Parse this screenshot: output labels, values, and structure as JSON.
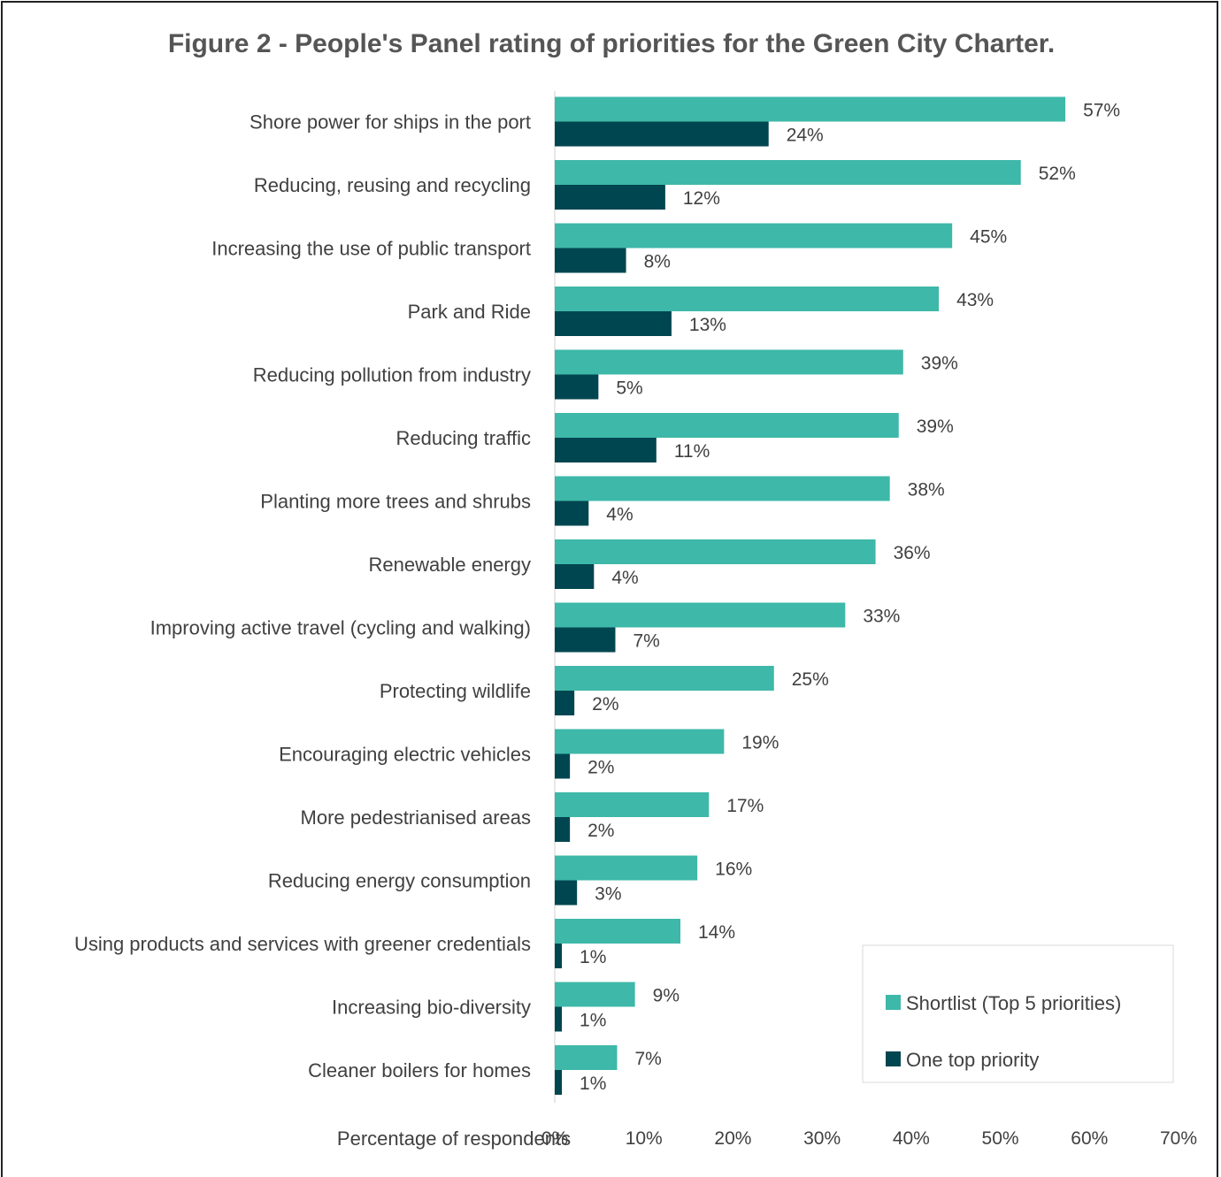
{
  "chart_data": {
    "type": "bar",
    "orientation": "horizontal",
    "title": "Figure 2 - People's Panel rating of priorities for the Green City Charter.",
    "xlabel": "Percentage of respondents",
    "ylabel": "",
    "xlim": [
      0,
      70
    ],
    "x_ticks": [
      "0%",
      "10%",
      "20%",
      "30%",
      "40%",
      "50%",
      "60%",
      "70%"
    ],
    "grid": false,
    "legend_position": "bottom-right",
    "categories": [
      "Shore power for ships in the port",
      "Reducing, reusing and recycling",
      "Increasing the use of public transport",
      "Park and Ride",
      "Reducing pollution from industry",
      "Reducing traffic",
      "Planting more trees and shrubs",
      "Renewable energy",
      "Improving active travel (cycling and walking)",
      "Protecting wildlife",
      "Encouraging electric vehicles",
      "More pedestrianised areas",
      "Reducing energy consumption",
      "Using products and services with greener credentials",
      "Increasing bio-diversity",
      "Cleaner boilers for homes"
    ],
    "series": [
      {
        "name": "Shortlist (Top 5 priorities)",
        "color": "#3eb8a8",
        "values": [
          57.3,
          52.3,
          44.6,
          43.1,
          39.1,
          38.6,
          37.6,
          36.0,
          32.6,
          24.6,
          19.0,
          17.3,
          16.0,
          14.1,
          9.0,
          7.0
        ],
        "labels": [
          "57%",
          "52%",
          "45%",
          "43%",
          "39%",
          "39%",
          "38%",
          "36%",
          "33%",
          "25%",
          "19%",
          "17%",
          "16%",
          "14%",
          "9%",
          "7%"
        ]
      },
      {
        "name": "One top priority",
        "color": "#004650",
        "values": [
          24.0,
          12.4,
          8.0,
          13.1,
          4.9,
          11.4,
          3.8,
          4.4,
          6.8,
          2.2,
          1.7,
          1.7,
          2.5,
          0.8,
          0.8,
          0.8
        ],
        "labels": [
          "24%",
          "12%",
          "8%",
          "13%",
          "5%",
          "11%",
          "4%",
          "4%",
          "7%",
          "2%",
          "2%",
          "2%",
          "3%",
          "1%",
          "1%",
          "1%"
        ]
      }
    ]
  }
}
